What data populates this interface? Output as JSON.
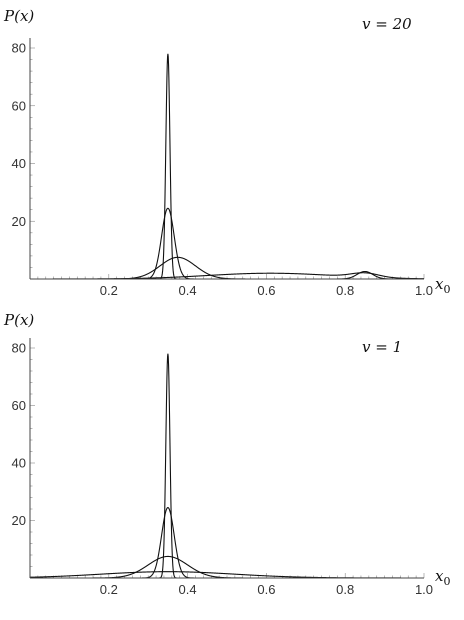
{
  "chart_data": [
    {
      "type": "line",
      "ylabel": "P(x)",
      "xlabel": "x0",
      "xlabel_main": "x",
      "xlabel_sub": "0",
      "annotation": "v = 20",
      "xlim": [
        0,
        1.0
      ],
      "ylim": [
        0,
        82
      ],
      "xticks": [
        0.2,
        0.4,
        0.6,
        0.8,
        1.0
      ],
      "xtick_labels": [
        "0.2",
        "0.4",
        "0.6",
        "0.8",
        "1.0"
      ],
      "yticks": [
        20,
        40,
        60,
        80
      ],
      "ytick_labels": [
        "20",
        "40",
        "60",
        "80"
      ],
      "grid": false,
      "series": [
        {
          "components": [
            {
              "mu": 0.35,
              "sigma": 0.0052,
              "peak": 78
            }
          ]
        },
        {
          "components": [
            {
              "mu": 0.35,
              "sigma": 0.016,
              "peak": 24.5
            }
          ]
        },
        {
          "components": [
            {
              "mu": 0.375,
              "sigma": 0.045,
              "peak": 7.5
            },
            {
              "mu": 0.85,
              "sigma": 0.02,
              "peak": 2.6
            }
          ]
        },
        {
          "components": [
            {
              "mu": 0.61,
              "sigma": 0.16,
              "peak": 2.0
            },
            {
              "mu": 0.85,
              "sigma": 0.035,
              "peak": 1.5
            }
          ]
        }
      ]
    },
    {
      "type": "line",
      "ylabel": "P(x)",
      "xlabel": "x0",
      "xlabel_main": "x",
      "xlabel_sub": "0",
      "annotation": "v = 1",
      "xlim": [
        0,
        1.0
      ],
      "ylim": [
        0,
        82
      ],
      "xticks": [
        0.2,
        0.4,
        0.6,
        0.8,
        1.0
      ],
      "xtick_labels": [
        "0.2",
        "0.4",
        "0.6",
        "0.8",
        "1.0"
      ],
      "yticks": [
        20,
        40,
        60,
        80
      ],
      "ytick_labels": [
        "20",
        "40",
        "60",
        "80"
      ],
      "grid": false,
      "series": [
        {
          "components": [
            {
              "mu": 0.35,
              "sigma": 0.0052,
              "peak": 78
            }
          ]
        },
        {
          "components": [
            {
              "mu": 0.35,
              "sigma": 0.016,
              "peak": 24.5
            }
          ]
        },
        {
          "components": [
            {
              "mu": 0.35,
              "sigma": 0.05,
              "peak": 7.5
            }
          ]
        },
        {
          "components": [
            {
              "mu": 0.35,
              "sigma": 0.17,
              "peak": 2.2
            }
          ]
        }
      ]
    }
  ]
}
